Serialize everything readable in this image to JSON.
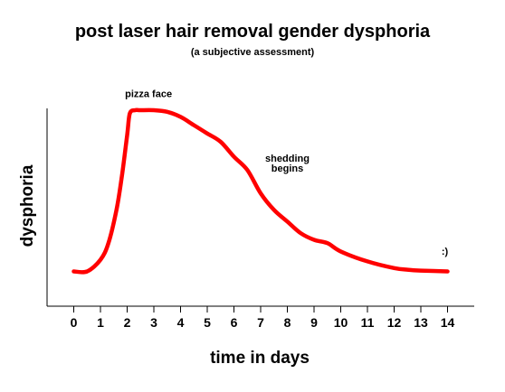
{
  "chart_data": {
    "type": "line",
    "title": "post laser hair removal gender dysphoria",
    "subtitle": "(a subjective assessment)",
    "xlabel": "time in days",
    "ylabel": "dysphoria",
    "xlim": [
      -1,
      15
    ],
    "ylim": [
      0,
      10
    ],
    "x_ticks": [
      0,
      1,
      2,
      3,
      4,
      5,
      6,
      7,
      8,
      9,
      10,
      11,
      12,
      13,
      14
    ],
    "y_ticks_shown": false,
    "grid": false,
    "line_color": "#ff0000",
    "series": [
      {
        "x": [
          0,
          0.5,
          1,
          1.3,
          1.6,
          1.8,
          2.0,
          2.1,
          2.3,
          2.5,
          3,
          3.5,
          4,
          4.5,
          5,
          5.5,
          6,
          6.5,
          7,
          7.5,
          8,
          8.5,
          9,
          9.5,
          10,
          11,
          12,
          12.5,
          13,
          14
        ],
        "y": [
          0.3,
          0.3,
          1.0,
          2.0,
          4.0,
          6.0,
          8.5,
          9.8,
          10.0,
          10.0,
          10.0,
          9.9,
          9.6,
          9.1,
          8.6,
          8.1,
          7.2,
          6.4,
          5.0,
          4.0,
          3.3,
          2.6,
          2.2,
          2.0,
          1.5,
          0.9,
          0.5,
          0.4,
          0.35,
          0.3
        ]
      }
    ],
    "annotations": [
      {
        "text": "pizza face",
        "x": 2.8,
        "y": 10.8
      },
      {
        "text": "shedding",
        "x": 8.0,
        "y": 6.9
      },
      {
        "text": "begins",
        "x": 8.0,
        "y": 6.3
      },
      {
        "text": ":)",
        "x": 13.9,
        "y": 1.3
      }
    ]
  }
}
